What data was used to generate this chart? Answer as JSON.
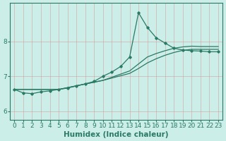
{
  "xlabel": "Humidex (Indice chaleur)",
  "bg_color": "#cceee8",
  "line_color": "#2a7a65",
  "grid_color": "#d4a0a0",
  "xlim": [
    -0.5,
    23.5
  ],
  "ylim": [
    5.75,
    9.1
  ],
  "yticks": [
    6,
    7,
    8
  ],
  "xticks": [
    0,
    1,
    2,
    3,
    4,
    5,
    6,
    7,
    8,
    9,
    10,
    11,
    12,
    13,
    14,
    15,
    16,
    17,
    18,
    19,
    20,
    21,
    22,
    23
  ],
  "line1_x": [
    0,
    1,
    2,
    3,
    4,
    5,
    6,
    7,
    8,
    9,
    10,
    11,
    12,
    13,
    14,
    15,
    16,
    17,
    18,
    19,
    20,
    21,
    22,
    23
  ],
  "line1_y": [
    6.62,
    6.52,
    6.5,
    6.55,
    6.58,
    6.62,
    6.66,
    6.72,
    6.78,
    6.85,
    7.0,
    7.12,
    7.28,
    7.55,
    8.82,
    8.4,
    8.1,
    7.95,
    7.8,
    7.75,
    7.73,
    7.72,
    7.7,
    7.7
  ],
  "line2_x": [
    0,
    5,
    10,
    13,
    14,
    15,
    16,
    17,
    18,
    19,
    20,
    21,
    22,
    23
  ],
  "line2_y": [
    6.62,
    6.62,
    6.88,
    7.15,
    7.35,
    7.55,
    7.65,
    7.73,
    7.8,
    7.84,
    7.86,
    7.85,
    7.85,
    7.85
  ],
  "line3_x": [
    0,
    5,
    10,
    13,
    14,
    15,
    16,
    17,
    18,
    19,
    20,
    21,
    22,
    23
  ],
  "line3_y": [
    6.62,
    6.62,
    6.88,
    7.08,
    7.22,
    7.38,
    7.5,
    7.6,
    7.68,
    7.74,
    7.77,
    7.77,
    7.77,
    7.77
  ],
  "fontsize_label": 7.5,
  "fontsize_tick": 6.5
}
